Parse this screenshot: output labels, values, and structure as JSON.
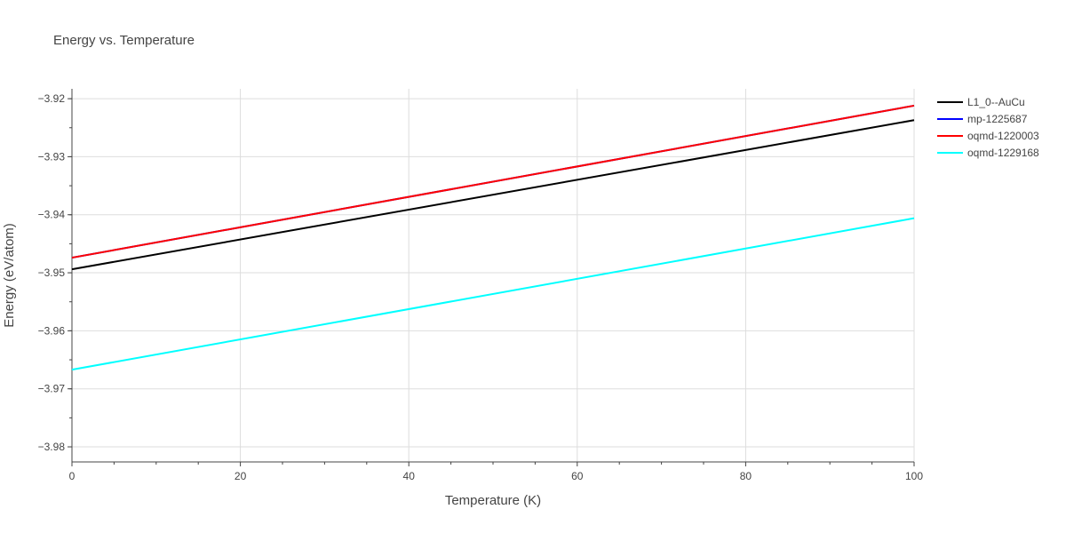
{
  "chart_data": {
    "type": "line",
    "title": "Energy vs. Temperature",
    "xlabel": "Temperature (K)",
    "ylabel": "Energy (eV/atom)",
    "xlim": [
      0,
      100
    ],
    "ylim": [
      -3.9826,
      -3.9183
    ],
    "xticks": [
      0,
      20,
      40,
      60,
      80,
      100
    ],
    "xtick_labels": [
      "0",
      "20",
      "40",
      "60",
      "80",
      "100"
    ],
    "yticks": [
      -3.92,
      -3.93,
      -3.94,
      -3.95,
      -3.96,
      -3.97,
      -3.98
    ],
    "ytick_labels": [
      "−3.92",
      "−3.93",
      "−3.94",
      "−3.95",
      "−3.96",
      "−3.97",
      "−3.98"
    ],
    "grid": true,
    "legend_position": "top-right, outside plot",
    "series": [
      {
        "name": "L1_0--AuCu",
        "color": "#000000",
        "x": [
          0,
          100
        ],
        "y": [
          -3.9494,
          -3.9237
        ]
      },
      {
        "name": "mp-1225687",
        "color": "#0000ff",
        "x": [
          0,
          100
        ],
        "y": [
          -3.9474,
          -3.9212
        ]
      },
      {
        "name": "oqmd-1220003",
        "color": "#ff0000",
        "x": [
          0,
          100
        ],
        "y": [
          -3.9474,
          -3.9212
        ]
      },
      {
        "name": "oqmd-1229168",
        "color": "#00ffff",
        "x": [
          0,
          100
        ],
        "y": [
          -3.9667,
          -3.9406
        ]
      }
    ]
  }
}
